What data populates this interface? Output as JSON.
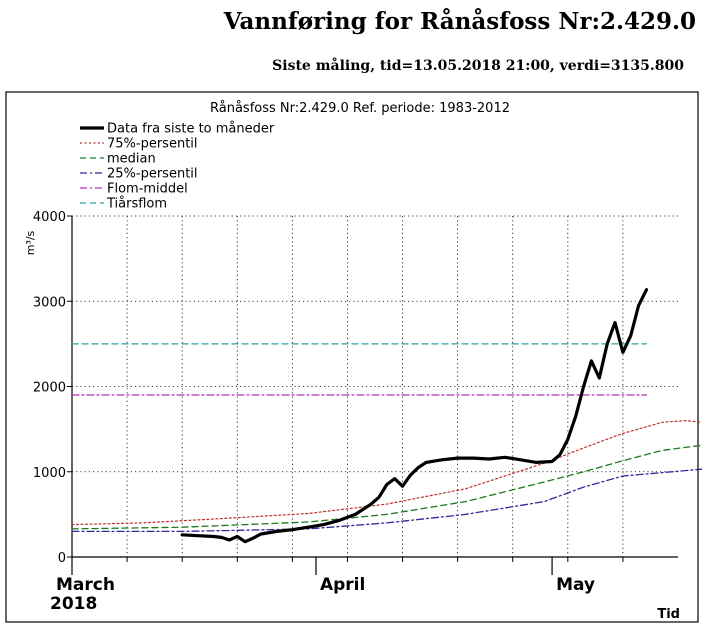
{
  "page": {
    "title": "Vannføring for Rånåsfoss Nr:2.429.0",
    "subtitle": "Siste måling, tid=13.05.2018 21:00, verdi=3135.800"
  },
  "colors": {
    "data": "#000000",
    "p75": "#c03030",
    "median": "#1e7a1e",
    "p25": "#2b2b9a",
    "flom_middel": "#b030b0",
    "tiarsflom": "#2aa0a0",
    "grid": "#000000"
  },
  "chart_data": {
    "type": "line",
    "title": "Rånåsfoss Nr:2.429.0 Ref. periode: 1983-2012",
    "xlabel": "Tid",
    "ylabel": "m³/s",
    "ylim": [
      0,
      4000
    ],
    "y_ticks": [
      0,
      1000,
      2000,
      3000,
      4000
    ],
    "xlim": [
      "2018-03-01",
      "2018-05-17"
    ],
    "x_tick_labels": [
      {
        "date": "2018-03-01",
        "label": "March",
        "sublabel": "2018"
      },
      {
        "date": "2018-04-01",
        "label": "April",
        "sublabel": ""
      },
      {
        "date": "2018-05-01",
        "label": "May",
        "sublabel": ""
      }
    ],
    "grid": true,
    "legend_position": "top-left",
    "series": [
      {
        "name": "Data fra siste to måneder",
        "key": "data",
        "style": "solid-thick",
        "points": [
          [
            "2018-03-15",
            260
          ],
          [
            "2018-03-17",
            250
          ],
          [
            "2018-03-19",
            240
          ],
          [
            "2018-03-20",
            230
          ],
          [
            "2018-03-21",
            200
          ],
          [
            "2018-03-22",
            240
          ],
          [
            "2018-03-23",
            180
          ],
          [
            "2018-03-24",
            220
          ],
          [
            "2018-03-25",
            270
          ],
          [
            "2018-03-27",
            300
          ],
          [
            "2018-03-29",
            320
          ],
          [
            "2018-03-31",
            350
          ],
          [
            "2018-04-02",
            380
          ],
          [
            "2018-04-04",
            430
          ],
          [
            "2018-04-06",
            500
          ],
          [
            "2018-04-08",
            620
          ],
          [
            "2018-04-09",
            700
          ],
          [
            "2018-04-10",
            850
          ],
          [
            "2018-04-11",
            920
          ],
          [
            "2018-04-12",
            830
          ],
          [
            "2018-04-13",
            960
          ],
          [
            "2018-04-14",
            1050
          ],
          [
            "2018-04-15",
            1110
          ],
          [
            "2018-04-17",
            1140
          ],
          [
            "2018-04-19",
            1160
          ],
          [
            "2018-04-21",
            1160
          ],
          [
            "2018-04-23",
            1150
          ],
          [
            "2018-04-25",
            1170
          ],
          [
            "2018-04-27",
            1140
          ],
          [
            "2018-04-29",
            1110
          ],
          [
            "2018-05-01",
            1120
          ],
          [
            "2018-05-02",
            1200
          ],
          [
            "2018-05-03",
            1380
          ],
          [
            "2018-05-04",
            1650
          ],
          [
            "2018-05-05",
            2000
          ],
          [
            "2018-05-06",
            2300
          ],
          [
            "2018-05-07",
            2100
          ],
          [
            "2018-05-08",
            2500
          ],
          [
            "2018-05-09",
            2750
          ],
          [
            "2018-05-10",
            2400
          ],
          [
            "2018-05-11",
            2600
          ],
          [
            "2018-05-12",
            2950
          ],
          [
            "2018-05-13",
            3135.8
          ]
        ]
      },
      {
        "name": "75%-persentil",
        "key": "p75",
        "style": "dotted",
        "points": [
          [
            "2018-03-01",
            380
          ],
          [
            "2018-03-10",
            400
          ],
          [
            "2018-03-20",
            450
          ],
          [
            "2018-03-31",
            510
          ],
          [
            "2018-04-10",
            620
          ],
          [
            "2018-04-20",
            800
          ],
          [
            "2018-04-30",
            1100
          ],
          [
            "2018-05-05",
            1280
          ],
          [
            "2018-05-10",
            1450
          ],
          [
            "2018-05-15",
            1580
          ],
          [
            "2018-05-18",
            1600
          ],
          [
            "2018-05-20",
            1580
          ]
        ]
      },
      {
        "name": "median",
        "key": "median",
        "style": "dashed",
        "points": [
          [
            "2018-03-01",
            330
          ],
          [
            "2018-03-15",
            350
          ],
          [
            "2018-03-31",
            410
          ],
          [
            "2018-04-10",
            500
          ],
          [
            "2018-04-20",
            650
          ],
          [
            "2018-04-30",
            880
          ],
          [
            "2018-05-05",
            1000
          ],
          [
            "2018-05-10",
            1130
          ],
          [
            "2018-05-15",
            1250
          ],
          [
            "2018-05-20",
            1310
          ]
        ]
      },
      {
        "name": "25%-persentil",
        "key": "p25",
        "style": "dashdot",
        "points": [
          [
            "2018-03-01",
            300
          ],
          [
            "2018-03-15",
            300
          ],
          [
            "2018-03-31",
            330
          ],
          [
            "2018-04-10",
            400
          ],
          [
            "2018-04-20",
            500
          ],
          [
            "2018-04-30",
            650
          ],
          [
            "2018-05-05",
            820
          ],
          [
            "2018-05-10",
            950
          ],
          [
            "2018-05-15",
            990
          ],
          [
            "2018-05-20",
            1030
          ]
        ]
      },
      {
        "name": "Flom-middel",
        "key": "flom_middel",
        "style": "dashdot",
        "points": [
          [
            "2018-03-01",
            1900
          ],
          [
            "2018-05-13",
            1900
          ]
        ]
      },
      {
        "name": "Tiårsflom",
        "key": "tiarsflom",
        "style": "dashed",
        "points": [
          [
            "2018-03-01",
            2500
          ],
          [
            "2018-05-13",
            2500
          ]
        ]
      }
    ]
  }
}
